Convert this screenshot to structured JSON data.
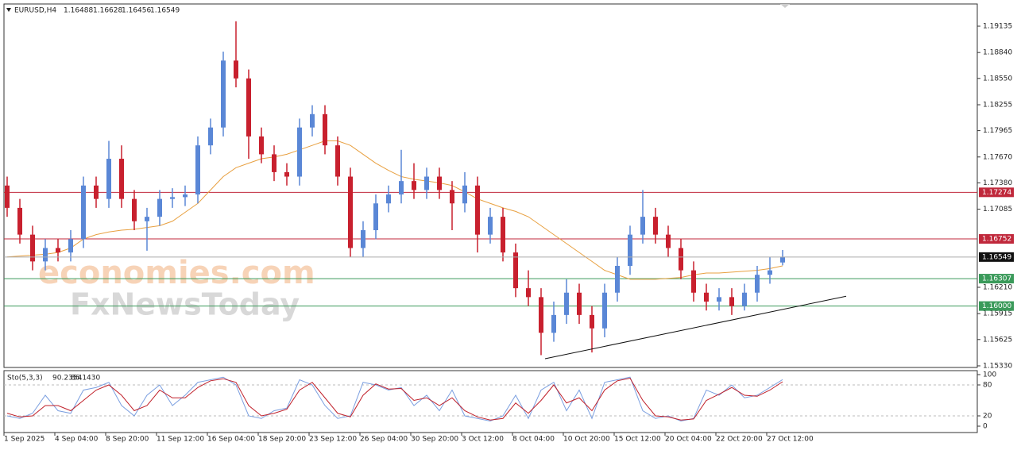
{
  "chart_data": {
    "type": "candlestick",
    "symbol": "EURUSD,H4",
    "watermark": [
      "economies.com",
      "FxNewsToday"
    ],
    "categories": [
      "1 Sep 2025",
      null,
      null,
      null,
      "4 Sep 04:00",
      null,
      null,
      null,
      "8 Sep 20:00",
      null,
      null,
      null,
      "11 Sep 12:00",
      null,
      null,
      null,
      "16 Sep 04:00",
      null,
      null,
      null,
      "18 Sep 20:00",
      null,
      null,
      null,
      "23 Sep 12:00",
      null,
      null,
      null,
      "26 Sep 04:00",
      null,
      null,
      null,
      "30 Sep 20:00",
      null,
      null,
      null,
      "3 Oct 12:00",
      null,
      null,
      null,
      "8 Oct 04:00",
      null,
      null,
      null,
      "10 Oct 20:00",
      null,
      null,
      null,
      "15 Oct 12:00",
      null,
      null,
      null,
      "20 Oct 04:00",
      null,
      null,
      null,
      "22 Oct 20:00",
      null,
      null,
      null,
      "27 Oct 12:00",
      null
    ],
    "open": [
      1.1735,
      1.171,
      1.168,
      1.165,
      1.1665,
      1.166,
      1.1675,
      1.1735,
      1.172,
      1.1765,
      1.172,
      1.1695,
      1.17,
      1.172,
      1.1722,
      1.1725,
      1.178,
      1.18,
      1.1875,
      1.1855,
      1.179,
      1.177,
      1.175,
      1.1745,
      1.18,
      1.1815,
      1.178,
      1.1745,
      1.1665,
      1.1685,
      1.1715,
      1.1725,
      1.174,
      1.173,
      1.1745,
      1.173,
      1.1715,
      1.1735,
      1.168,
      1.17,
      1.166,
      1.162,
      1.161,
      1.157,
      1.159,
      1.1615,
      1.159,
      1.1575,
      1.1615,
      1.1645,
      1.168,
      1.17,
      1.168,
      1.1665,
      1.164,
      1.1615,
      1.1605,
      1.161,
      1.16,
      1.1615,
      1.1635,
      1.16488
    ],
    "high": [
      1.1745,
      1.172,
      1.169,
      1.1675,
      1.1675,
      1.1685,
      1.1745,
      1.1745,
      1.1785,
      1.178,
      1.173,
      1.171,
      1.173,
      1.1732,
      1.1735,
      1.179,
      1.181,
      1.1885,
      1.1919,
      1.1865,
      1.18,
      1.178,
      1.176,
      1.181,
      1.1825,
      1.1825,
      1.179,
      1.1755,
      1.1695,
      1.1725,
      1.1735,
      1.1775,
      1.176,
      1.1755,
      1.1755,
      1.174,
      1.175,
      1.1745,
      1.171,
      1.171,
      1.167,
      1.164,
      1.162,
      1.1605,
      1.163,
      1.1625,
      1.16,
      1.1625,
      1.1655,
      1.169,
      1.173,
      1.171,
      1.169,
      1.1675,
      1.165,
      1.1625,
      1.162,
      1.162,
      1.1625,
      1.1645,
      1.1655,
      1.16628
    ],
    "low": [
      1.17,
      1.167,
      1.164,
      1.164,
      1.165,
      1.165,
      1.1665,
      1.171,
      1.171,
      1.171,
      1.1685,
      1.1662,
      1.169,
      1.171,
      1.1712,
      1.1715,
      1.177,
      1.179,
      1.1845,
      1.1765,
      1.176,
      1.174,
      1.1735,
      1.1735,
      1.179,
      1.177,
      1.1735,
      1.1655,
      1.1655,
      1.1675,
      1.1705,
      1.1715,
      1.172,
      1.172,
      1.172,
      1.1685,
      1.1705,
      1.166,
      1.167,
      1.165,
      1.161,
      1.16,
      1.1545,
      1.156,
      1.158,
      1.158,
      1.1548,
      1.1565,
      1.1605,
      1.1635,
      1.167,
      1.167,
      1.1655,
      1.163,
      1.1605,
      1.1595,
      1.1595,
      1.159,
      1.1595,
      1.1605,
      1.1625,
      1.16456
    ],
    "close": [
      1.171,
      1.168,
      1.165,
      1.1665,
      1.166,
      1.1675,
      1.1735,
      1.172,
      1.1765,
      1.172,
      1.1695,
      1.17,
      1.172,
      1.1722,
      1.1725,
      1.178,
      1.18,
      1.1875,
      1.1855,
      1.179,
      1.177,
      1.175,
      1.1745,
      1.18,
      1.1815,
      1.178,
      1.1745,
      1.1665,
      1.1685,
      1.1715,
      1.1725,
      1.174,
      1.173,
      1.1745,
      1.173,
      1.1715,
      1.1735,
      1.168,
      1.17,
      1.166,
      1.162,
      1.161,
      1.157,
      1.159,
      1.1615,
      1.159,
      1.1575,
      1.1615,
      1.1645,
      1.168,
      1.17,
      1.168,
      1.1665,
      1.164,
      1.1615,
      1.1605,
      1.161,
      1.16,
      1.1615,
      1.1635,
      1.164,
      1.16549
    ],
    "bull_color": "#5a87d6",
    "bear_color": "#c8202e",
    "ma": {
      "color": "#e8a040",
      "values": [
        1.1655,
        1.1656,
        1.1657,
        1.1658,
        1.166,
        1.1665,
        1.1675,
        1.168,
        1.1683,
        1.1685,
        1.1686,
        1.1688,
        1.169,
        1.1695,
        1.1705,
        1.1715,
        1.173,
        1.1745,
        1.1755,
        1.176,
        1.1765,
        1.1767,
        1.177,
        1.1775,
        1.178,
        1.1785,
        1.1785,
        1.178,
        1.177,
        1.176,
        1.1752,
        1.1745,
        1.1742,
        1.174,
        1.1738,
        1.1735,
        1.1728,
        1.172,
        1.1715,
        1.171,
        1.1706,
        1.17,
        1.169,
        1.168,
        1.167,
        1.166,
        1.165,
        1.164,
        1.1635,
        1.163,
        1.163,
        1.163,
        1.1631,
        1.1632,
        1.1635,
        1.1637,
        1.1637,
        1.1638,
        1.1639,
        1.164,
        1.1642,
        1.1645
      ]
    },
    "ylim": [
      1.15312,
      1.19384
    ],
    "yticks": [
      1.19135,
      {
        "value": 1.1884,
        "label": "1.18840"
      },
      {
        "value": 1.1855,
        "label": "1.18550"
      },
      1.18255,
      1.17965,
      {
        "value": 1.1767,
        "label": "1.17670"
      },
      {
        "value": 1.1738,
        "label": "1.17380"
      },
      1.17085,
      {
        "value": 1.1621,
        "label": "1.16210"
      },
      1.15915,
      1.15625,
      {
        "value": 1.1533,
        "label": "1.15330"
      }
    ],
    "levels": [
      {
        "value": 1.17274,
        "color": "#c0283b"
      },
      {
        "value": 1.16752,
        "color": "#c0283b"
      },
      {
        "value": 1.16307,
        "color": "#3a9a5a"
      },
      {
        "value": 1.16,
        "label": "1.16000",
        "color": "#3a9a5a"
      }
    ],
    "trendline": {
      "start": 1.1541,
      "end": 1.1611,
      "color": "#111111"
    },
    "stochastic": {
      "name": "Sto(5,3,3)",
      "ylim": [
        0,
        100
      ],
      "yticks": [
        0,
        20,
        80,
        100
      ],
      "levels": [
        20,
        80
      ],
      "k": {
        "color": "#7b9fe0",
        "values": [
          20,
          15,
          25,
          60,
          30,
          25,
          70,
          75,
          85,
          40,
          20,
          60,
          80,
          40,
          60,
          85,
          90,
          95,
          80,
          20,
          15,
          30,
          35,
          90,
          80,
          40,
          15,
          20,
          85,
          80,
          70,
          75,
          40,
          60,
          30,
          70,
          20,
          15,
          10,
          20,
          60,
          15,
          70,
          85,
          30,
          70,
          15,
          85,
          90,
          95,
          30,
          15,
          20,
          10,
          15,
          70,
          60,
          80,
          55,
          60,
          75,
          90.2354
        ]
      },
      "d": {
        "color": "#c0202a",
        "values": [
          25,
          18,
          20,
          40,
          40,
          30,
          50,
          70,
          80,
          60,
          30,
          40,
          70,
          55,
          55,
          75,
          88,
          92,
          85,
          40,
          20,
          25,
          33,
          70,
          85,
          55,
          25,
          18,
          60,
          82,
          72,
          73,
          50,
          55,
          40,
          55,
          30,
          18,
          12,
          15,
          45,
          25,
          50,
          80,
          45,
          55,
          30,
          70,
          88,
          93,
          50,
          20,
          18,
          12,
          14,
          50,
          62,
          75,
          60,
          58,
          70,
          86.143
        ],
        "value_labels": [
          null,
          null,
          null,
          null,
          null,
          null,
          null,
          null,
          null,
          null,
          null,
          null,
          null,
          null,
          null,
          null,
          null,
          null,
          null,
          null,
          null,
          null,
          null,
          null,
          null,
          null,
          null,
          null,
          null,
          null,
          null,
          null,
          null,
          null,
          null,
          null,
          null,
          null,
          null,
          null,
          null,
          null,
          null,
          null,
          null,
          null,
          null,
          null,
          null,
          null,
          null,
          null,
          null,
          null,
          null,
          null,
          null,
          null,
          null,
          null,
          null,
          "86.1430"
        ]
      }
    }
  }
}
